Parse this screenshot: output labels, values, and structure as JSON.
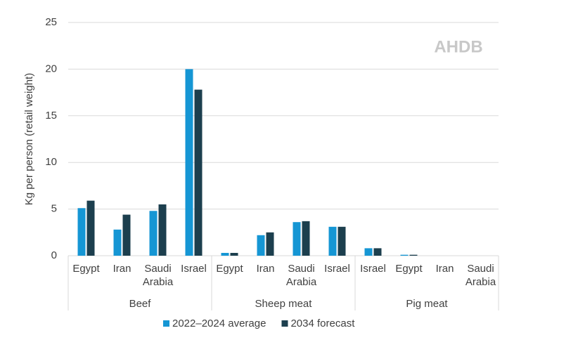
{
  "chart_data": {
    "type": "bar",
    "y_label": "Kg per person (retail weight)",
    "watermark": "AHDB",
    "groups": [
      {
        "name": "Beef",
        "categories": [
          "Egypt",
          "Iran",
          "Saudi Arabia",
          "Israel"
        ]
      },
      {
        "name": "Sheep meat",
        "categories": [
          "Egypt",
          "Iran",
          "Saudi Arabia",
          "Israel"
        ]
      },
      {
        "name": "Pig meat",
        "categories": [
          "Israel",
          "Egypt",
          "Iran",
          "Saudi Arabia"
        ]
      }
    ],
    "series": [
      {
        "name": "2022–2024 average",
        "color": "#1596d4",
        "values": [
          5.1,
          2.8,
          4.8,
          20.0,
          0.3,
          2.2,
          3.6,
          3.1,
          0.8,
          0.1,
          0,
          0
        ]
      },
      {
        "name": "2034 forecast",
        "color": "#1c3f4e",
        "values": [
          5.9,
          4.4,
          5.5,
          17.8,
          0.3,
          2.5,
          3.7,
          3.1,
          0.8,
          0.1,
          0,
          0
        ]
      }
    ],
    "ylim": [
      0,
      25
    ],
    "yticks": [
      0,
      5,
      10,
      15,
      20,
      25
    ],
    "grid": true
  }
}
